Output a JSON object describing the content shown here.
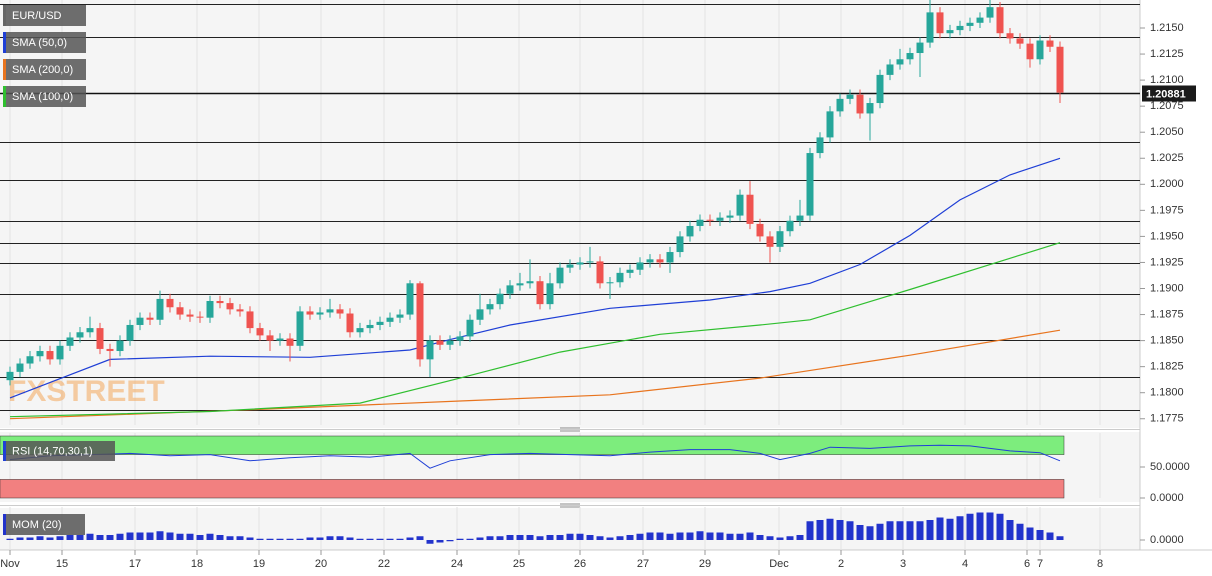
{
  "chart_data": [
    {
      "type": "candlestick",
      "title": "EUR/USD",
      "watermark": "FXSTREET",
      "up_color": "#26a69a",
      "down_color": "#ef5350",
      "x": [
        0,
        1,
        2,
        3,
        4,
        5,
        6,
        7,
        8,
        9,
        10,
        11,
        12,
        13,
        14,
        15,
        16,
        17,
        18,
        19,
        20,
        21,
        22,
        23,
        24,
        25,
        26,
        27,
        28,
        29,
        30,
        31,
        32,
        33,
        34,
        35,
        36,
        37,
        38,
        39,
        40,
        41,
        42,
        43,
        44,
        45,
        46,
        47,
        48,
        49,
        50,
        51,
        52,
        53,
        54,
        55,
        56,
        57,
        58,
        59,
        60,
        61,
        62,
        63,
        64,
        65,
        66,
        67,
        68,
        69,
        70,
        71,
        72,
        73,
        74,
        75,
        76,
        77,
        78,
        79,
        80,
        81,
        82,
        83,
        84,
        85,
        86,
        87,
        88,
        89,
        90,
        91,
        92,
        93,
        94,
        95,
        96,
        97,
        98,
        99,
        100,
        101,
        102,
        103,
        104,
        105
      ],
      "open": [
        1.1812,
        1.182,
        1.1828,
        1.1835,
        1.184,
        1.1832,
        1.1845,
        1.1853,
        1.1858,
        1.1862,
        1.1842,
        1.184,
        1.185,
        1.1865,
        1.1872,
        1.187,
        1.189,
        1.1882,
        1.1875,
        1.1873,
        1.1872,
        1.1888,
        1.1886,
        1.188,
        1.1878,
        1.1862,
        1.1855,
        1.185,
        1.1852,
        1.1845,
        1.1878,
        1.1875,
        1.1877,
        1.188,
        1.1876,
        1.1858,
        1.1862,
        1.1865,
        1.1868,
        1.1872,
        1.1875,
        1.1905,
        1.1832,
        1.185,
        1.1846,
        1.185,
        1.1854,
        1.187,
        1.188,
        1.1885,
        1.1895,
        1.1903,
        1.1905,
        1.1907,
        1.1885,
        1.1905,
        1.192,
        1.1923,
        1.1925,
        1.1926,
        1.1905,
        1.1906,
        1.1915,
        1.1918,
        1.1925,
        1.1928,
        1.1925,
        1.1935,
        1.195,
        1.196,
        1.1966,
        1.1965,
        1.1968,
        1.197,
        1.199,
        1.1962,
        1.195,
        1.194,
        1.1955,
        1.1965,
        1.197,
        1.203,
        1.2045,
        1.207,
        1.2082,
        1.2086,
        1.2068,
        1.2078,
        1.2105,
        1.2115,
        1.212,
        1.2126,
        1.2136,
        1.2165,
        1.2145,
        1.2148,
        1.2152,
        1.2155,
        1.216,
        1.217,
        1.2145,
        1.214,
        1.2135,
        1.212,
        1.2138,
        1.2132
      ],
      "high": [
        1.1825,
        1.1833,
        1.184,
        1.1845,
        1.1845,
        1.185,
        1.1858,
        1.1863,
        1.1873,
        1.1867,
        1.1847,
        1.1855,
        1.187,
        1.1877,
        1.1877,
        1.1898,
        1.1895,
        1.1887,
        1.188,
        1.1878,
        1.1893,
        1.1893,
        1.1891,
        1.1885,
        1.1883,
        1.1867,
        1.186,
        1.1857,
        1.1857,
        1.1883,
        1.1883,
        1.1882,
        1.189,
        1.1885,
        1.1881,
        1.1867,
        1.187,
        1.1873,
        1.1877,
        1.188,
        1.1908,
        1.1907,
        1.1855,
        1.1855,
        1.1855,
        1.1859,
        1.1875,
        1.1895,
        1.189,
        1.19,
        1.1908,
        1.1915,
        1.1928,
        1.1912,
        1.1915,
        1.1925,
        1.1928,
        1.193,
        1.194,
        1.1931,
        1.1911,
        1.192,
        1.1923,
        1.193,
        1.1933,
        1.1933,
        1.194,
        1.1955,
        1.1965,
        1.1971,
        1.1971,
        1.1973,
        1.1975,
        1.1995,
        1.2003,
        1.1967,
        1.1955,
        1.196,
        1.197,
        1.1985,
        1.2035,
        1.205,
        1.2075,
        1.2087,
        1.2091,
        1.2091,
        1.2083,
        1.211,
        1.212,
        1.213,
        1.2131,
        1.2141,
        1.2177,
        1.217,
        1.2153,
        1.2157,
        1.216,
        1.2165,
        1.2177,
        1.2175,
        1.215,
        1.2145,
        1.214,
        1.2143,
        1.2143,
        1.2137
      ],
      "low": [
        1.1807,
        1.1815,
        1.1823,
        1.183,
        1.1827,
        1.1827,
        1.184,
        1.1848,
        1.1853,
        1.1837,
        1.1825,
        1.1835,
        1.1845,
        1.186,
        1.1865,
        1.1865,
        1.1877,
        1.187,
        1.1868,
        1.1867,
        1.1867,
        1.1881,
        1.1875,
        1.1873,
        1.1857,
        1.185,
        1.184,
        1.1845,
        1.183,
        1.184,
        1.187,
        1.187,
        1.1872,
        1.1871,
        1.1853,
        1.1853,
        1.1857,
        1.186,
        1.1863,
        1.1867,
        1.187,
        1.1825,
        1.1815,
        1.1841,
        1.1841,
        1.1845,
        1.1849,
        1.1865,
        1.1875,
        1.188,
        1.189,
        1.1898,
        1.19,
        1.188,
        1.188,
        1.19,
        1.1915,
        1.1918,
        1.192,
        1.19,
        1.189,
        1.1901,
        1.191,
        1.1913,
        1.192,
        1.192,
        1.1915,
        1.193,
        1.1945,
        1.1955,
        1.196,
        1.196,
        1.1963,
        1.1965,
        1.1957,
        1.1945,
        1.1925,
        1.1935,
        1.195,
        1.196,
        1.1965,
        1.2025,
        1.204,
        1.2065,
        1.2077,
        1.2063,
        1.2042,
        1.2073,
        1.21,
        1.211,
        1.2115,
        1.2103,
        1.2131,
        1.214,
        1.214,
        1.2143,
        1.2147,
        1.215,
        1.2155,
        1.214,
        1.2135,
        1.213,
        1.2112,
        1.2115,
        1.2127,
        1.2078
      ],
      "close": [
        1.182,
        1.1828,
        1.1835,
        1.184,
        1.1832,
        1.1845,
        1.1853,
        1.1858,
        1.1862,
        1.1842,
        1.184,
        1.185,
        1.1865,
        1.1872,
        1.187,
        1.189,
        1.1882,
        1.1875,
        1.1873,
        1.1872,
        1.1888,
        1.1886,
        1.188,
        1.1878,
        1.1862,
        1.1855,
        1.185,
        1.1852,
        1.1845,
        1.1878,
        1.1875,
        1.1877,
        1.188,
        1.1876,
        1.1858,
        1.1862,
        1.1865,
        1.1868,
        1.1872,
        1.1875,
        1.1905,
        1.1832,
        1.185,
        1.1846,
        1.185,
        1.1854,
        1.187,
        1.188,
        1.1885,
        1.1895,
        1.1903,
        1.1905,
        1.1907,
        1.1885,
        1.1905,
        1.192,
        1.1923,
        1.1925,
        1.1926,
        1.1905,
        1.1906,
        1.1915,
        1.1918,
        1.1925,
        1.1928,
        1.1925,
        1.1935,
        1.195,
        1.196,
        1.1966,
        1.1965,
        1.1968,
        1.197,
        1.199,
        1.1962,
        1.195,
        1.194,
        1.1955,
        1.1965,
        1.197,
        1.203,
        1.2045,
        1.207,
        1.2082,
        1.2086,
        1.2068,
        1.2078,
        1.2105,
        1.2115,
        1.212,
        1.2126,
        1.2136,
        1.2165,
        1.2145,
        1.2148,
        1.2152,
        1.2155,
        1.216,
        1.217,
        1.2145,
        1.214,
        1.2135,
        1.212,
        1.2138,
        1.2132,
        1.2088
      ],
      "overlays": [
        {
          "name": "SMA (50,0)",
          "color": "#1f3fd6",
          "x": [
            0,
            10,
            20,
            30,
            40,
            44,
            50,
            60,
            70,
            76,
            80,
            85,
            90,
            95,
            100,
            105
          ],
          "values": [
            1.1795,
            1.1832,
            1.1835,
            1.1834,
            1.1841,
            1.1851,
            1.1865,
            1.1881,
            1.1889,
            1.1897,
            1.1905,
            1.1923,
            1.1951,
            1.1985,
            1.2009,
            1.2025
          ]
        },
        {
          "name": "SMA (200,0)",
          "color": "#e8741e",
          "x": [
            0,
            25,
            45,
            60,
            75,
            90,
            105
          ],
          "values": [
            1.1775,
            1.1784,
            1.1792,
            1.1798,
            1.1814,
            1.1836,
            1.186
          ]
        },
        {
          "name": "SMA (100,0)",
          "color": "#2fbf2f",
          "x": [
            0,
            20,
            35,
            45,
            55,
            65,
            75,
            80,
            90,
            100,
            105
          ],
          "values": [
            1.1777,
            1.1782,
            1.179,
            1.1814,
            1.1839,
            1.1856,
            1.1865,
            1.187,
            1.1899,
            1.1929,
            1.1944
          ]
        }
      ],
      "levels": [
        1.2173,
        1.2141,
        1.2041,
        1.2004,
        1.1965,
        1.1944,
        1.1924,
        1.1895,
        1.1851,
        1.1815,
        1.1783
      ],
      "last_price": 1.20881,
      "xlim": [
        -1,
        112.5
      ],
      "xticks": [
        {
          "value": 0,
          "label": "Nov"
        },
        {
          "value": 5.2,
          "label": "15"
        },
        {
          "value": 12.5,
          "label": "17"
        },
        {
          "value": 18.7,
          "label": "18"
        },
        {
          "value": 24.9,
          "label": "19"
        },
        {
          "value": 31.1,
          "label": "20"
        },
        {
          "value": 37.4,
          "label": "22"
        },
        {
          "value": 44.7,
          "label": "24"
        },
        {
          "value": 50.9,
          "label": "25"
        },
        {
          "value": 57,
          "label": "26"
        },
        {
          "value": 63.3,
          "label": "27"
        },
        {
          "value": 69.5,
          "label": "29"
        },
        {
          "value": 76.9,
          "label": "Dec"
        },
        {
          "value": 83.1,
          "label": "2"
        },
        {
          "value": 89.3,
          "label": "3"
        },
        {
          "value": 95.5,
          "label": "4"
        },
        {
          "value": 101.7,
          "label": "6"
        },
        {
          "value": 103,
          "label": "7"
        },
        {
          "value": 109,
          "label": "8"
        }
      ],
      "ylim": [
        1.1769,
        1.2174
      ],
      "yticks": [
        1.1775,
        {
          "value": 1.18,
          "label": "1.1800"
        },
        1.1825,
        {
          "value": 1.185,
          "label": "1.1850"
        },
        1.1875,
        {
          "value": 1.19,
          "label": "1.1900"
        },
        1.1925,
        {
          "value": 1.195,
          "label": "1.1950"
        },
        1.1975,
        {
          "value": 1.2,
          "label": "1.2000"
        },
        1.2025,
        {
          "value": 1.205,
          "label": "1.2050"
        },
        1.2075,
        {
          "value": 1.21,
          "label": "1.2100"
        },
        1.2125,
        {
          "value": 1.215,
          "label": "1.2150"
        }
      ],
      "grid": true
    },
    {
      "type": "line",
      "title": "RSI (14,70,30,1)",
      "color": "#1f3fd6",
      "x": [
        0,
        4,
        8,
        12,
        16,
        20,
        24,
        28,
        32,
        36,
        40,
        42,
        44,
        48,
        52,
        56,
        60,
        64,
        68,
        72,
        75,
        77,
        80,
        82,
        86,
        90,
        93,
        96,
        100,
        103,
        105
      ],
      "values": [
        62,
        68,
        70,
        72,
        68,
        70,
        60,
        65,
        68,
        66,
        72,
        48,
        60,
        70,
        72,
        70,
        68,
        74,
        78,
        78,
        72,
        62,
        72,
        82,
        80,
        84,
        85,
        84,
        76,
        73,
        60
      ],
      "overbought": 70,
      "oversold": 30,
      "overbought_color": "#7ded7d",
      "oversold_color": "#f28080",
      "ylim": [
        0,
        100
      ],
      "yticks": [
        {
          "value": 50,
          "label": "50.0000"
        },
        {
          "value": 0,
          "label": "0.0000"
        }
      ]
    },
    {
      "type": "bar",
      "title": "MOM (20)",
      "color": "#2233cc",
      "values": [
        0.0005,
        0.001,
        0.001,
        0.0015,
        0.001,
        0.0015,
        0.002,
        0.002,
        0.0025,
        0.002,
        0.002,
        0.0025,
        0.003,
        0.003,
        0.003,
        0.0035,
        0.003,
        0.0025,
        0.0025,
        0.002,
        0.0025,
        0.002,
        0.0015,
        0.0015,
        0.001,
        0.0005,
        0.0005,
        0.0005,
        0.0005,
        0.0005,
        0.001,
        0.001,
        0.0015,
        0.0015,
        0.001,
        0.0005,
        0.0005,
        0.0005,
        0.0005,
        0.0005,
        0.001,
        0.0015,
        -0.0015,
        -0.001,
        -0.0005,
        0.0005,
        0.0005,
        0.001,
        0.0015,
        0.0015,
        0.002,
        0.002,
        0.002,
        0.0015,
        0.002,
        0.002,
        0.0025,
        0.0025,
        0.002,
        0.0015,
        0.001,
        0.0015,
        0.002,
        0.0025,
        0.003,
        0.003,
        0.0025,
        0.003,
        0.003,
        0.0035,
        0.003,
        0.003,
        0.0025,
        0.0025,
        0.003,
        0.002,
        0.0015,
        0.001,
        0.0015,
        0.002,
        0.0075,
        0.008,
        0.0085,
        0.008,
        0.0075,
        0.006,
        0.0055,
        0.0065,
        0.0075,
        0.0075,
        0.0075,
        0.0075,
        0.008,
        0.009,
        0.0085,
        0.0095,
        0.0105,
        0.011,
        0.011,
        0.0105,
        0.008,
        0.0065,
        0.005,
        0.004,
        0.003,
        0.0015
      ],
      "ylim": [
        -0.004,
        0.012
      ],
      "yticks": [
        {
          "value": 0,
          "label": "0.0000"
        }
      ]
    }
  ]
}
